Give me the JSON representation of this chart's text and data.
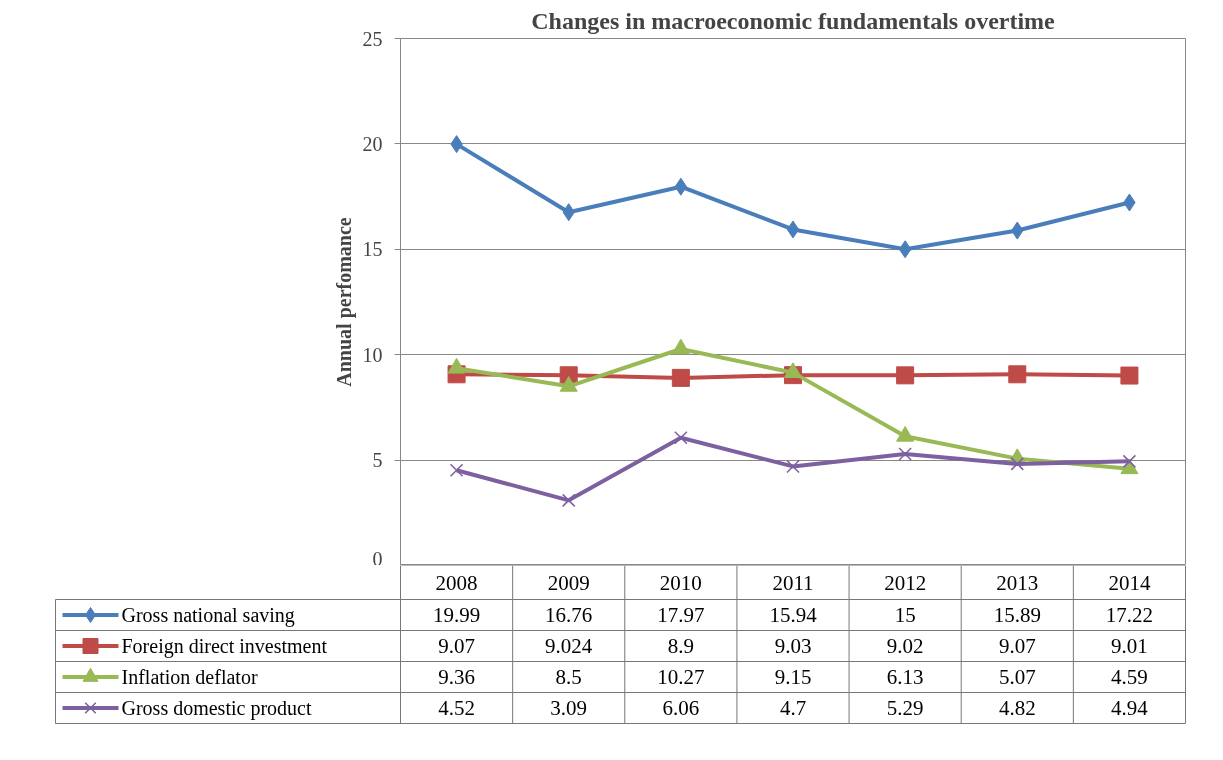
{
  "chart_data": {
    "type": "line",
    "title": "Changes in macroeconomic fundamentals overtime",
    "ylabel": "Annual perfomance",
    "categories": [
      "2008",
      "2009",
      "2010",
      "2011",
      "2012",
      "2013",
      "2014"
    ],
    "series": [
      {
        "name": "Gross national saving",
        "color": "#4a7ebb",
        "marker": "diamond",
        "values": [
          19.99,
          16.76,
          17.97,
          15.94,
          15,
          15.89,
          17.22
        ]
      },
      {
        "name": "Foreign direct investment",
        "color": "#be4b48",
        "marker": "square",
        "values": [
          9.07,
          9.024,
          8.9,
          9.03,
          9.02,
          9.07,
          9.01
        ]
      },
      {
        "name": "Inflation deflator",
        "color": "#98b954",
        "marker": "triangle",
        "values": [
          9.36,
          8.5,
          10.27,
          9.15,
          6.13,
          5.07,
          4.59
        ]
      },
      {
        "name": "Gross domestic product",
        "color": "#7d60a0",
        "marker": "x",
        "values": [
          4.52,
          3.09,
          6.06,
          4.7,
          5.29,
          4.82,
          4.94
        ]
      }
    ],
    "ylim": [
      0,
      25
    ],
    "yticks": [
      0,
      5,
      10,
      15,
      20,
      25
    ],
    "grid": "y",
    "legend": "bottom",
    "data_labels": true,
    "line_style": "solid"
  }
}
